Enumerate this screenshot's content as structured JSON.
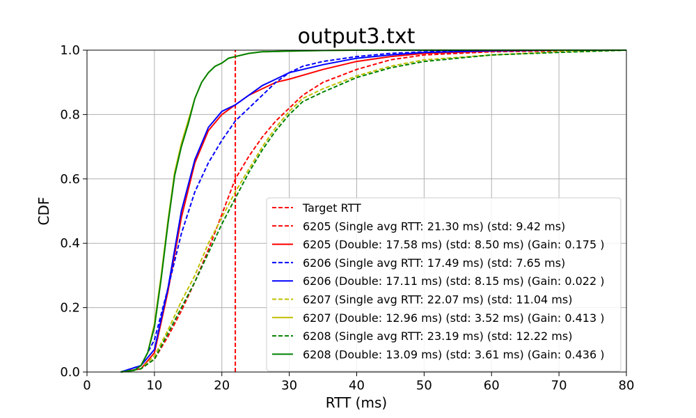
{
  "chart_data": {
    "type": "line",
    "title": "output3.txt",
    "xlabel": "RTT (ms)",
    "ylabel": "CDF",
    "xlim": [
      0,
      80
    ],
    "ylim": [
      0,
      1.0
    ],
    "xticks": [
      "0",
      "10",
      "20",
      "30",
      "40",
      "50",
      "60",
      "70",
      "80"
    ],
    "yticks": [
      "0.0",
      "0.2",
      "0.4",
      "0.6",
      "0.8",
      "1.0"
    ],
    "grid": true,
    "legend_position": "lower-right",
    "target_rtt": 22,
    "series": [
      {
        "name": "Target RTT",
        "color": "#ff0000",
        "dash": true,
        "kind": "vline",
        "x": [
          22,
          22
        ],
        "y": [
          0,
          1.0
        ]
      },
      {
        "name": "6205 (Single avg RTT: 21.30 ms) (std: 9.42 ms)",
        "color": "#ff0000",
        "dash": true,
        "x": [
          5,
          8,
          10,
          12,
          14,
          16,
          18,
          20,
          22,
          24,
          26,
          28,
          30,
          32,
          35,
          40,
          45,
          50,
          60,
          70,
          80
        ],
        "y": [
          0,
          0.01,
          0.04,
          0.11,
          0.19,
          0.28,
          0.38,
          0.49,
          0.6,
          0.67,
          0.73,
          0.78,
          0.82,
          0.86,
          0.9,
          0.94,
          0.97,
          0.985,
          0.995,
          0.998,
          1.0
        ]
      },
      {
        "name": "6205 (Double: 17.58 ms) (std: 8.50 ms) (Gain: 0.175 )",
        "color": "#ff0000",
        "dash": false,
        "x": [
          5,
          8,
          10,
          12,
          14,
          16,
          18,
          20,
          22,
          24,
          26,
          28,
          30,
          35,
          40,
          45,
          50,
          60,
          70,
          80
        ],
        "y": [
          0,
          0.01,
          0.06,
          0.25,
          0.48,
          0.65,
          0.75,
          0.8,
          0.83,
          0.86,
          0.88,
          0.9,
          0.91,
          0.94,
          0.965,
          0.98,
          0.99,
          0.997,
          1.0,
          1.0
        ]
      },
      {
        "name": "6206 (Single avg RTT: 17.49 ms) (std: 7.65 ms)",
        "color": "#0000ff",
        "dash": true,
        "x": [
          5,
          8,
          10,
          12,
          14,
          16,
          18,
          20,
          22,
          24,
          26,
          28,
          30,
          32,
          35,
          40,
          45,
          50,
          60,
          70,
          80
        ],
        "y": [
          0,
          0.02,
          0.1,
          0.26,
          0.43,
          0.56,
          0.65,
          0.72,
          0.78,
          0.82,
          0.86,
          0.9,
          0.93,
          0.95,
          0.965,
          0.98,
          0.99,
          0.995,
          0.999,
          1.0,
          1.0
        ]
      },
      {
        "name": "6206 (Double: 17.11 ms) (std: 8.15 ms) (Gain: 0.022 )",
        "color": "#0000ff",
        "dash": false,
        "x": [
          5,
          8,
          10,
          12,
          14,
          16,
          18,
          20,
          22,
          24,
          26,
          28,
          30,
          35,
          40,
          45,
          50,
          60,
          70,
          80
        ],
        "y": [
          0,
          0.02,
          0.07,
          0.26,
          0.5,
          0.66,
          0.76,
          0.81,
          0.83,
          0.86,
          0.89,
          0.91,
          0.93,
          0.955,
          0.975,
          0.985,
          0.993,
          0.998,
          1.0,
          1.0
        ]
      },
      {
        "name": "6207 (Single avg RTT: 22.07 ms) (std: 11.04 ms)",
        "color": "#bfbf00",
        "dash": true,
        "x": [
          5,
          8,
          10,
          12,
          14,
          16,
          18,
          20,
          22,
          24,
          26,
          28,
          30,
          32,
          35,
          40,
          45,
          50,
          60,
          70,
          80
        ],
        "y": [
          0,
          0.01,
          0.05,
          0.13,
          0.22,
          0.3,
          0.4,
          0.48,
          0.56,
          0.63,
          0.7,
          0.76,
          0.81,
          0.85,
          0.88,
          0.92,
          0.95,
          0.97,
          0.985,
          0.995,
          1.0
        ]
      },
      {
        "name": "6207 (Double: 12.96 ms) (std: 3.52 ms) (Gain: 0.413 )",
        "color": "#bfbf00",
        "dash": false,
        "x": [
          5,
          7,
          8,
          9,
          10,
          11,
          12,
          13,
          14,
          15,
          16,
          17,
          18,
          19,
          20,
          21,
          22,
          24,
          26,
          30,
          35,
          40,
          50,
          80
        ],
        "y": [
          0,
          0.005,
          0.02,
          0.06,
          0.15,
          0.3,
          0.47,
          0.62,
          0.71,
          0.78,
          0.85,
          0.9,
          0.93,
          0.95,
          0.96,
          0.975,
          0.98,
          0.99,
          0.995,
          0.997,
          0.999,
          1.0,
          1.0,
          1.0
        ]
      },
      {
        "name": "6208 (Single avg RTT: 23.19 ms) (std: 12.22 ms)",
        "color": "#008000",
        "dash": true,
        "x": [
          5,
          8,
          10,
          12,
          14,
          16,
          18,
          20,
          22,
          24,
          26,
          28,
          30,
          32,
          35,
          40,
          45,
          50,
          60,
          70,
          80
        ],
        "y": [
          0,
          0.01,
          0.04,
          0.12,
          0.2,
          0.28,
          0.37,
          0.46,
          0.54,
          0.62,
          0.69,
          0.75,
          0.8,
          0.84,
          0.87,
          0.915,
          0.945,
          0.965,
          0.985,
          0.993,
          1.0
        ]
      },
      {
        "name": "6208 (Double: 13.09 ms) (std: 3.61 ms) (Gain: 0.436 )",
        "color": "#008000",
        "dash": false,
        "x": [
          5,
          7,
          8,
          9,
          10,
          11,
          12,
          13,
          14,
          15,
          16,
          17,
          18,
          19,
          20,
          21,
          22,
          24,
          26,
          30,
          35,
          40,
          50,
          80
        ],
        "y": [
          0,
          0.005,
          0.02,
          0.06,
          0.14,
          0.29,
          0.46,
          0.61,
          0.7,
          0.77,
          0.85,
          0.9,
          0.93,
          0.95,
          0.96,
          0.975,
          0.98,
          0.99,
          0.995,
          0.997,
          0.999,
          1.0,
          1.0,
          1.0
        ]
      }
    ]
  }
}
